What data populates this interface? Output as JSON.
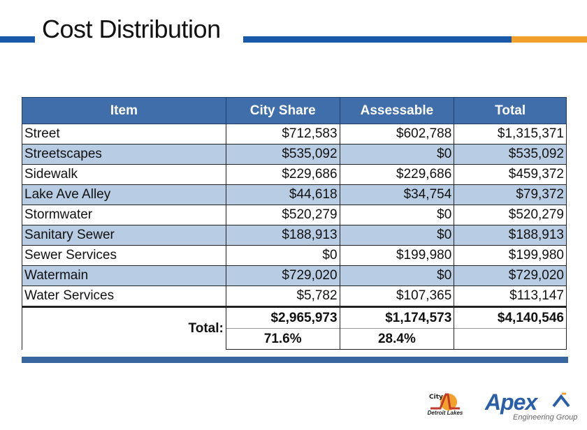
{
  "title": "Cost Distribution",
  "colors": {
    "header_bg": "#3f6eaa",
    "alt_row": "#b8cce4",
    "brand_blue": "#1a5aa8",
    "brand_orange": "#f2a22c"
  },
  "table": {
    "headers": [
      "Item",
      "City Share",
      "Assessable",
      "Total"
    ],
    "rows": [
      [
        "Street",
        "$712,583",
        "$602,788",
        "$1,315,371"
      ],
      [
        "Streetscapes",
        "$535,092",
        "$0",
        "$535,092"
      ],
      [
        "Sidewalk",
        "$229,686",
        "$229,686",
        "$459,372"
      ],
      [
        "Lake Ave Alley",
        "$44,618",
        "$34,754",
        "$79,372"
      ],
      [
        "Stormwater",
        "$520,279",
        "$0",
        "$520,279"
      ],
      [
        "Sanitary Sewer",
        "$188,913",
        "$0",
        "$188,913"
      ],
      [
        "Sewer Services",
        "$0",
        "$199,980",
        "$199,980"
      ],
      [
        "Watermain",
        "$729,020",
        "$0",
        "$729,020"
      ],
      [
        "Water Services",
        "$5,782",
        "$107,365",
        "$113,147"
      ]
    ],
    "total": {
      "label": "Total:",
      "city_share": "$2,965,973",
      "assessable": "$1,174,573",
      "total": "$4,140,546",
      "city_pct": "71.6%",
      "assess_pct": "28.4%"
    }
  },
  "logos": {
    "city": {
      "name": "Detroit Lakes",
      "icon": "city-logo-icon"
    },
    "apex": {
      "name": "Apex",
      "tagline": "Engineering Group",
      "icon": "apex-logo-icon"
    }
  }
}
